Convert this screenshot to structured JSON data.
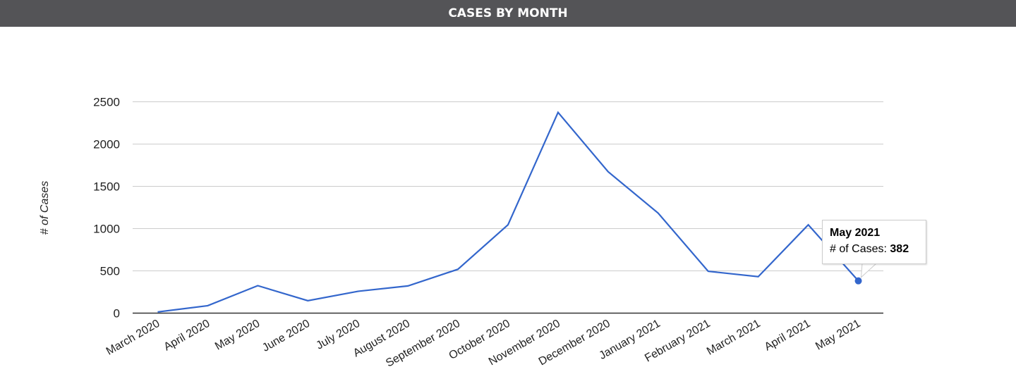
{
  "header": {
    "title": "CASES BY MONTH"
  },
  "chart_data": {
    "type": "line",
    "title": "",
    "xlabel": "",
    "ylabel": "# of Cases",
    "ylim": [
      0,
      2500
    ],
    "yticks": [
      0,
      500,
      1000,
      1500,
      2000,
      2500
    ],
    "grid": true,
    "legend": "none",
    "color": "#3366cc",
    "categories": [
      "March 2020",
      "April 2020",
      "May 2020",
      "June 2020",
      "July 2020",
      "August 2020",
      "September 2020",
      "October 2020",
      "November 2020",
      "December 2020",
      "January 2021",
      "February 2021",
      "March 2021",
      "April 2021",
      "May 2021"
    ],
    "series": [
      {
        "values": [
          14,
          88,
          325,
          147,
          258,
          322,
          519,
          1045,
          2375,
          1673,
          1183,
          495,
          431,
          1045,
          382
        ]
      }
    ]
  },
  "tooltip": {
    "title": "May 2021",
    "label": "# of Cases:",
    "value": "382"
  }
}
